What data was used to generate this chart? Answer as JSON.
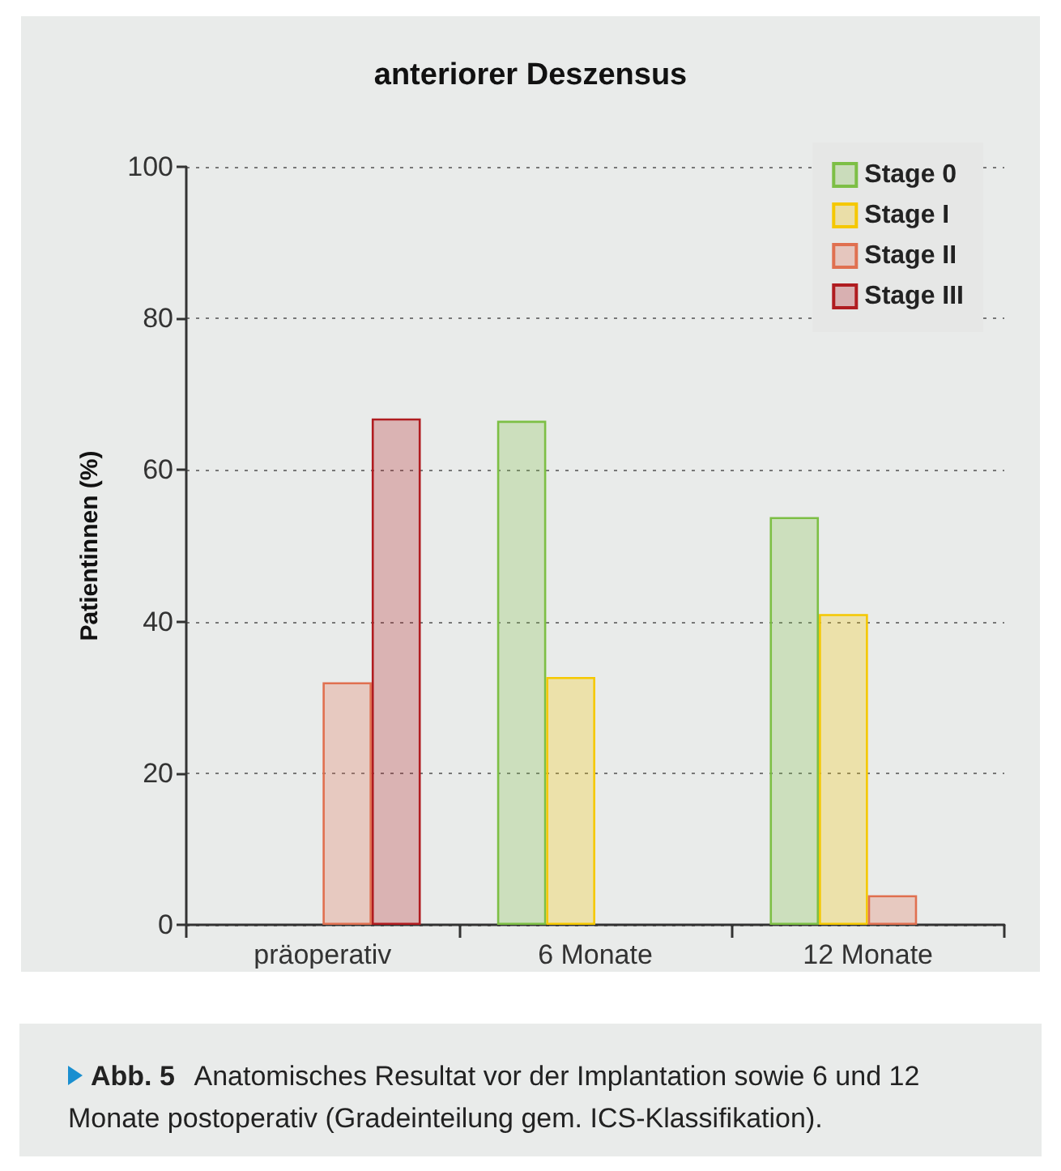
{
  "chart_data": {
    "type": "bar",
    "title": "anteriorer Deszensus",
    "ylabel": "Patientinnen (%)",
    "categories": [
      "präoperativ",
      "6 Monate",
      "12 Monate"
    ],
    "series": [
      {
        "name": "Stage 0",
        "color": "#7dbf45",
        "values": [
          null,
          66.5,
          53.8
        ]
      },
      {
        "name": "Stage I",
        "color": "#f5c800",
        "values": [
          null,
          32.7,
          41
        ]
      },
      {
        "name": "Stage II",
        "color": "#e07050",
        "values": [
          32,
          null,
          3.9
        ]
      },
      {
        "name": "Stage III",
        "color": "#b01c20",
        "values": [
          66.8,
          null,
          null
        ]
      }
    ],
    "ylim": [
      0,
      100
    ],
    "yticks": [
      0,
      20,
      40,
      60,
      80,
      100
    ],
    "grid": "y",
    "legend": "top right",
    "annotations": [
      "Abb. 5",
      "Anatomisches Resultat vor der Implantation sowie 6 und 12 Monate postoperativ (Gradeinteilung gem. ICS-Klassifikation)."
    ]
  }
}
